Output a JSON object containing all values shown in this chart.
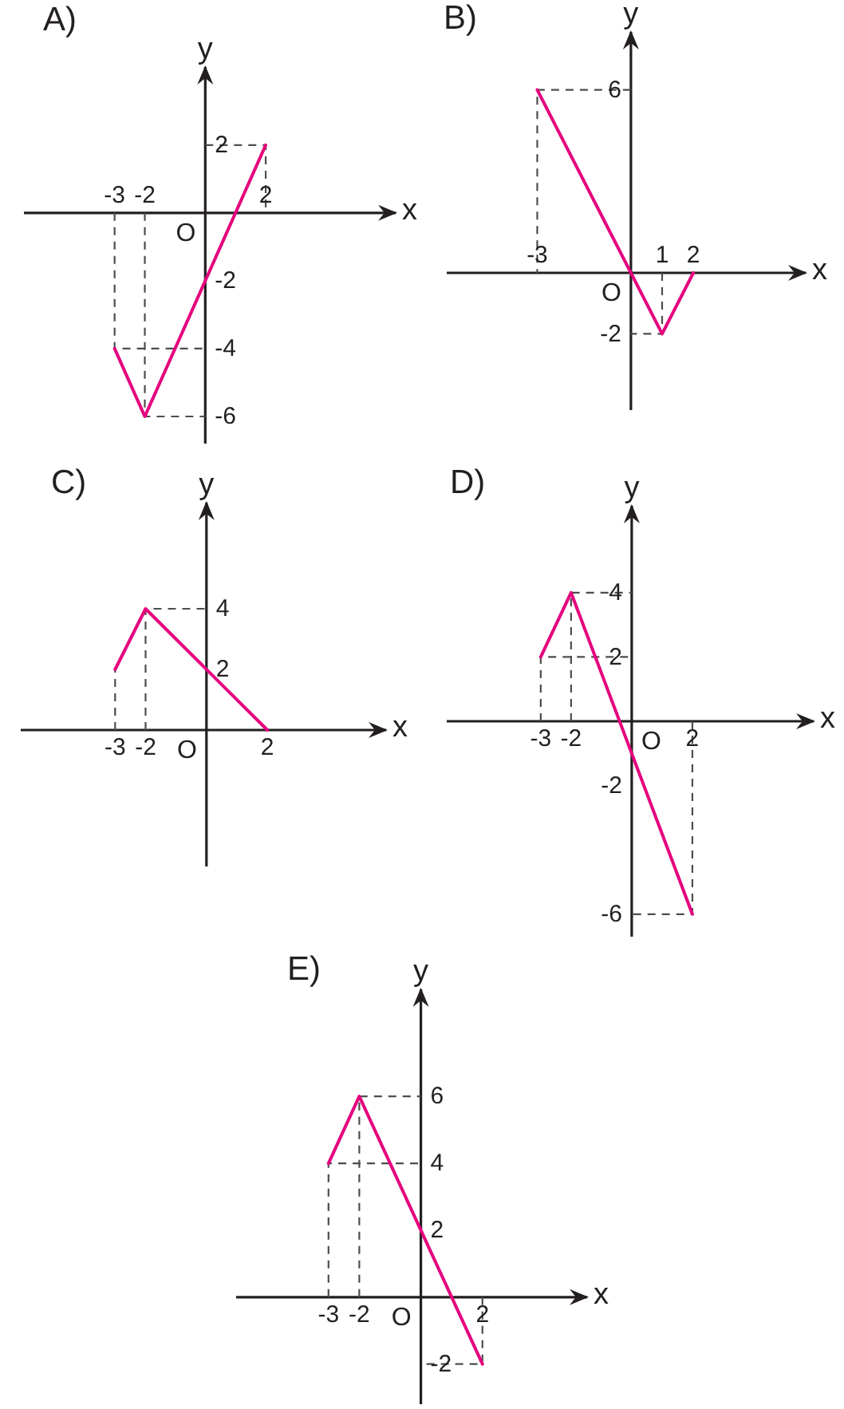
{
  "chart_data": [
    {
      "type": "line",
      "title": "A)",
      "xlabel": "x",
      "ylabel": "y",
      "annotations": [
        "O"
      ],
      "xlim": [
        -6,
        6.3
      ],
      "ylim": [
        -6.8,
        4.3
      ],
      "xticks": [
        -3,
        -2,
        2
      ],
      "yticks": [
        -6,
        -4,
        -2,
        2
      ],
      "grid": false,
      "legend": false,
      "marker": "none",
      "series": [
        {
          "color": "#e5007e",
          "line_style": "solid",
          "x": [
            -3,
            -2,
            2
          ],
          "values": [
            -4,
            -6,
            2
          ]
        },
        {
          "color": "#4d4d4d",
          "line_style": "dashed",
          "x": [
            -3,
            -3,
            0,
            null,
            -2,
            -2,
            0,
            null,
            0,
            2,
            2
          ],
          "values": [
            0,
            -4,
            -4,
            null,
            0,
            -6,
            -6,
            null,
            2,
            2,
            0
          ]
        }
      ]
    },
    {
      "type": "line",
      "title": "B)",
      "xlabel": "x",
      "ylabel": "y",
      "annotations": [
        "O"
      ],
      "xlim": [
        -5.9,
        5.6
      ],
      "ylim": [
        -4.5,
        7.9
      ],
      "xticks": [
        -3,
        1,
        2
      ],
      "yticks": [
        -2,
        6
      ],
      "grid": false,
      "legend": false,
      "marker": "none",
      "series": [
        {
          "color": "#e5007e",
          "line_style": "solid",
          "x": [
            -3,
            1,
            2
          ],
          "values": [
            6,
            -2,
            0
          ]
        },
        {
          "color": "#4d4d4d",
          "line_style": "dashed",
          "x": [
            0,
            -3,
            -3,
            null,
            1,
            1,
            0
          ],
          "values": [
            6,
            6,
            0,
            null,
            0,
            -2,
            -2
          ]
        }
      ]
    },
    {
      "type": "line",
      "title": "C)",
      "xlabel": "x",
      "ylabel": "y",
      "annotations": [
        "O"
      ],
      "xlim": [
        -6.1,
        5.9
      ],
      "ylim": [
        -4.5,
        7.5
      ],
      "xticks": [
        -3,
        -2,
        2
      ],
      "yticks": [
        2,
        4
      ],
      "grid": false,
      "legend": false,
      "marker": "none",
      "series": [
        {
          "color": "#e5007e",
          "line_style": "solid",
          "x": [
            -3,
            -2,
            2
          ],
          "values": [
            2,
            4,
            0
          ]
        },
        {
          "color": "#4d4d4d",
          "line_style": "dashed",
          "x": [
            -3,
            -3,
            null,
            -2,
            -2,
            0
          ],
          "values": [
            0,
            2,
            null,
            0,
            4,
            4
          ]
        }
      ]
    },
    {
      "type": "line",
      "title": "D)",
      "xlabel": "x",
      "ylabel": "y",
      "annotations": [
        "O"
      ],
      "xlim": [
        -6.1,
        6
      ],
      "ylim": [
        -6.7,
        6.7
      ],
      "xticks": [
        -3,
        -2,
        2
      ],
      "yticks": [
        -6,
        -2,
        2,
        4
      ],
      "grid": false,
      "legend": false,
      "marker": "none",
      "series": [
        {
          "color": "#e5007e",
          "line_style": "solid",
          "x": [
            -3,
            -2,
            2
          ],
          "values": [
            2,
            4,
            -6
          ]
        },
        {
          "color": "#4d4d4d",
          "line_style": "dashed",
          "x": [
            -3,
            -3,
            0,
            null,
            -2,
            -2,
            0,
            null,
            2,
            2,
            0
          ],
          "values": [
            0,
            2,
            2,
            null,
            0,
            4,
            4,
            null,
            0,
            -6,
            -6
          ]
        }
      ]
    },
    {
      "type": "line",
      "title": "E)",
      "xlabel": "x",
      "ylabel": "y",
      "annotations": [
        "O"
      ],
      "xlim": [
        -6,
        5.4
      ],
      "ylim": [
        -3.2,
        9.2
      ],
      "xticks": [
        -3,
        -2,
        2
      ],
      "yticks": [
        -2,
        2,
        4,
        6
      ],
      "grid": false,
      "legend": false,
      "marker": "none",
      "series": [
        {
          "color": "#e5007e",
          "line_style": "solid",
          "x": [
            -3,
            -2,
            2
          ],
          "values": [
            4,
            6,
            -2
          ]
        },
        {
          "color": "#4d4d4d",
          "line_style": "dashed",
          "x": [
            -3,
            -3,
            0,
            null,
            -2,
            -2,
            0,
            null,
            2,
            2,
            0
          ],
          "values": [
            0,
            4,
            4,
            null,
            0,
            6,
            6,
            null,
            0,
            -2,
            -2
          ]
        }
      ]
    }
  ]
}
